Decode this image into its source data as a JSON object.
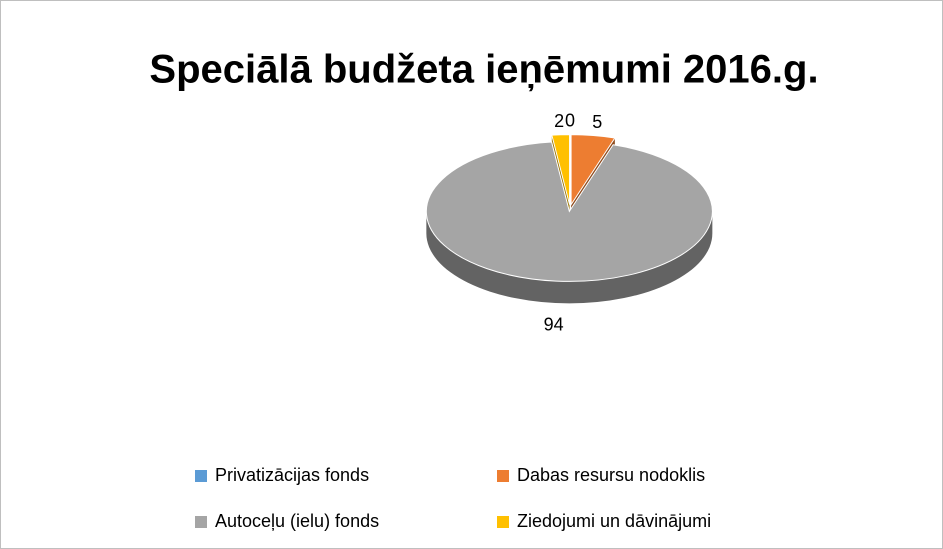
{
  "chart_data": {
    "type": "pie",
    "title": "Speciālā budžeta ieņēmumi 2016.g.",
    "categories": [
      "Privatizācijas fonds",
      "Dabas resursu nodoklis",
      "Autoceļu (ielu) fonds",
      "Ziedojumi un dāvinājumi"
    ],
    "values": [
      0,
      5,
      94,
      2
    ],
    "colors": [
      "#5b9bd5",
      "#ed7d31",
      "#a5a5a5",
      "#ffc000"
    ],
    "legend": "bottom"
  }
}
